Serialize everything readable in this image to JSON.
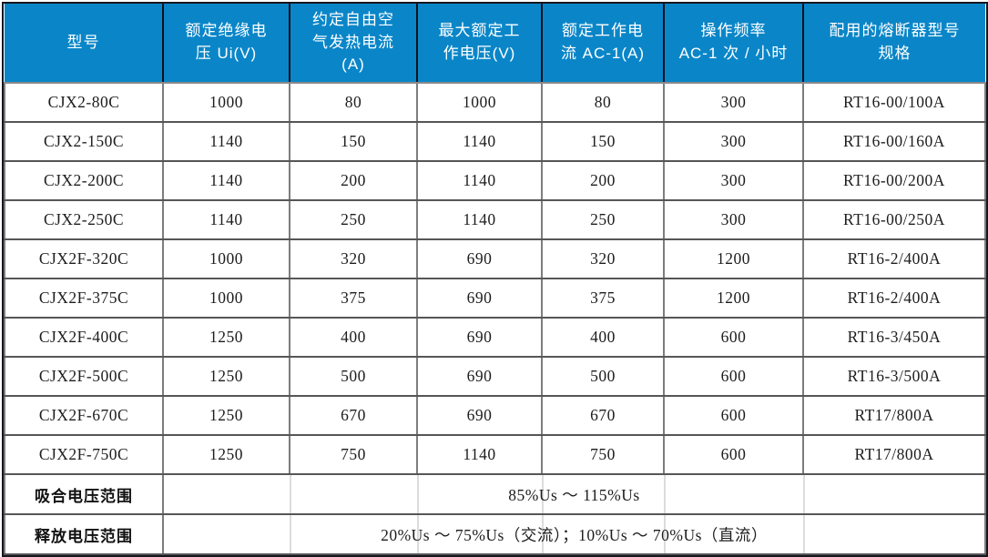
{
  "colors": {
    "header_bg": "#0a86c8",
    "header_text": "#ffffff",
    "outer_border": "#16161f",
    "header_divider": "#10101e",
    "row_line": "#565656",
    "column_line": "#7d7d7d",
    "ghost_line": "#dcdcdc",
    "body_text": "#1d1d1d"
  },
  "table": {
    "columns": [
      "型号",
      "额定绝缘电\n压 Ui(V)",
      "约定自由空\n气发热电流\n(A)",
      "最大额定工\n作电压(V)",
      "额定工作电\n流 AC-1(A)",
      "操作频率\nAC-1 次 / 小时",
      "配用的熔断器型号\n规格"
    ],
    "rows": [
      [
        "CJX2-80C",
        "1000",
        "80",
        "1000",
        "80",
        "300",
        "RT16-00/100A"
      ],
      [
        "CJX2-150C",
        "1140",
        "150",
        "1140",
        "150",
        "300",
        "RT16-00/160A"
      ],
      [
        "CJX2-200C",
        "1140",
        "200",
        "1140",
        "200",
        "300",
        "RT16-00/200A"
      ],
      [
        "CJX2-250C",
        "1140",
        "250",
        "1140",
        "250",
        "300",
        "RT16-00/250A"
      ],
      [
        "CJX2F-320C",
        "1000",
        "320",
        "690",
        "320",
        "1200",
        "RT16-2/400A"
      ],
      [
        "CJX2F-375C",
        "1000",
        "375",
        "690",
        "375",
        "1200",
        "RT16-2/400A"
      ],
      [
        "CJX2F-400C",
        "1250",
        "400",
        "690",
        "400",
        "600",
        "RT16-3/450A"
      ],
      [
        "CJX2F-500C",
        "1250",
        "500",
        "690",
        "500",
        "600",
        "RT16-3/500A"
      ],
      [
        "CJX2F-670C",
        "1250",
        "670",
        "690",
        "670",
        "600",
        "RT17/800A"
      ],
      [
        "CJX2F-750C",
        "1250",
        "750",
        "1140",
        "750",
        "600",
        "RT17/800A"
      ]
    ],
    "footer_rows": [
      {
        "label": "吸合电压范围",
        "value": "85%Us ～ 115%Us"
      },
      {
        "label": "释放电压范围",
        "value": "20%Us ～ 75%Us（交流）；10%Us ～ 70%Us（直流）"
      }
    ]
  }
}
